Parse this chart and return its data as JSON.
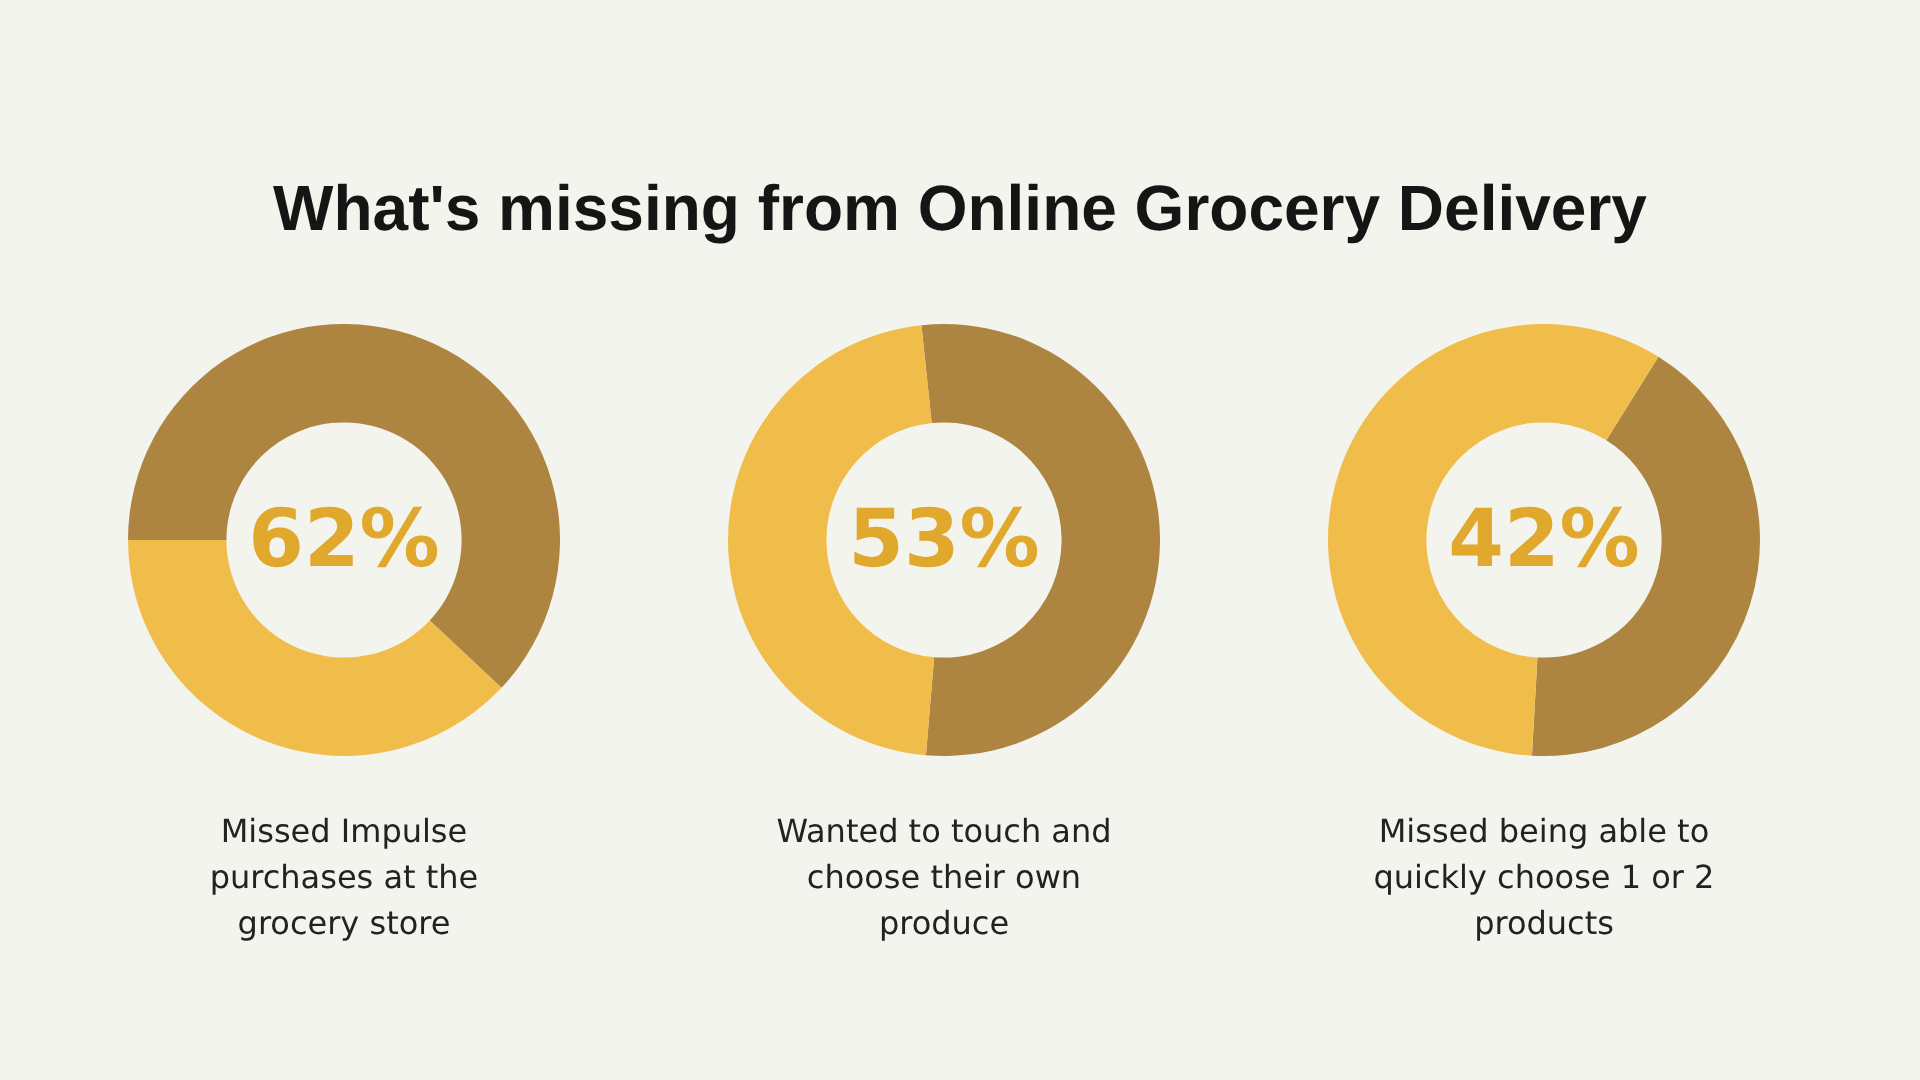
{
  "chart_data": [
    {
      "type": "donut",
      "title": "What's missing from Online Grocery Delivery",
      "categories": [
        null,
        null
      ],
      "values": [
        62,
        38
      ],
      "colors": [
        "#ad8541",
        "#f0bd4b"
      ],
      "value_labels": [
        "62%",
        null
      ],
      "annotations": [
        "Missed Impulse purchases at the grocery store"
      ]
    },
    {
      "type": "donut",
      "categories": [
        null,
        null
      ],
      "values": [
        53,
        47
      ],
      "colors": [
        "#ad8541",
        "#f0bd4b"
      ],
      "value_labels": [
        "53%",
        null
      ],
      "annotations": [
        "Wanted to touch and choose their own produce"
      ]
    },
    {
      "type": "donut",
      "categories": [
        null,
        null
      ],
      "values": [
        42,
        58
      ],
      "colors": [
        "#ad8541",
        "#f0bd4b"
      ],
      "value_labels": [
        "42%",
        null
      ],
      "annotations": [
        "Missed being able to quickly choose 1 or 2 products"
      ]
    }
  ]
}
